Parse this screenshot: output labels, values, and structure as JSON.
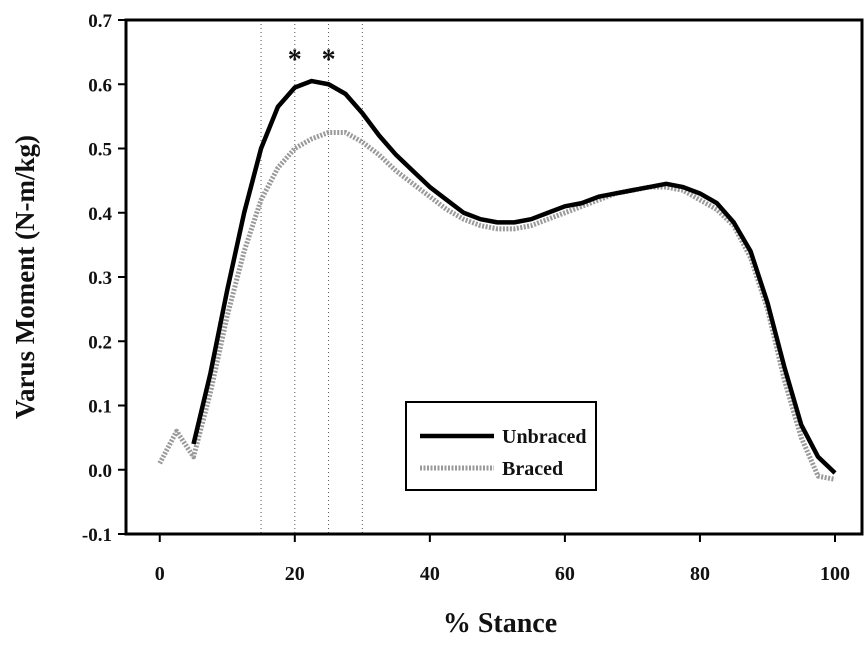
{
  "chart_data": {
    "type": "line",
    "xlabel": "% Stance",
    "ylabel": "Varus Moment (N-m/kg)",
    "x": [
      0,
      2.5,
      5,
      7.5,
      10,
      12.5,
      15,
      17.5,
      20,
      22.5,
      25,
      27.5,
      30,
      32.5,
      35,
      37.5,
      40,
      42.5,
      45,
      47.5,
      50,
      52.5,
      55,
      57.5,
      60,
      62.5,
      65,
      67.5,
      70,
      72.5,
      75,
      77.5,
      80,
      82.5,
      85,
      87.5,
      90,
      92.5,
      95,
      97.5,
      100
    ],
    "series": [
      {
        "name": "Unbraced",
        "color": "#000000",
        "style": "solid",
        "values": [
          null,
          null,
          0.04,
          0.15,
          0.28,
          0.4,
          0.5,
          0.565,
          0.595,
          0.605,
          0.6,
          0.585,
          0.555,
          0.52,
          0.49,
          0.465,
          0.44,
          0.42,
          0.4,
          0.39,
          0.385,
          0.385,
          0.39,
          0.4,
          0.41,
          0.415,
          0.425,
          0.43,
          0.435,
          0.44,
          0.445,
          0.44,
          0.43,
          0.415,
          0.385,
          0.34,
          0.26,
          0.16,
          0.07,
          0.02,
          -0.005
        ]
      },
      {
        "name": "Braced",
        "color": "#9a9a9a",
        "style": "dotted",
        "values": [
          0.01,
          0.06,
          0.02,
          0.12,
          0.24,
          0.34,
          0.42,
          0.47,
          0.5,
          0.515,
          0.525,
          0.525,
          0.51,
          0.49,
          0.465,
          0.445,
          0.425,
          0.405,
          0.39,
          0.38,
          0.375,
          0.375,
          0.38,
          0.39,
          0.4,
          0.41,
          0.42,
          0.43,
          0.435,
          0.44,
          0.44,
          0.435,
          0.42,
          0.405,
          0.38,
          0.33,
          0.25,
          0.14,
          0.05,
          -0.01,
          -0.015
        ]
      }
    ],
    "xlim": [
      -5,
      104
    ],
    "ylim": [
      -0.1,
      0.7
    ],
    "xticks": [
      0,
      20,
      40,
      60,
      80,
      100
    ],
    "yticks": [
      -0.1,
      {
        "value": 0,
        "label": "0.0"
      },
      0.1,
      0.2,
      0.3,
      0.4,
      0.5,
      0.6,
      0.7
    ],
    "vlines": [
      15,
      20,
      25,
      30
    ],
    "annotations": [
      {
        "text": "*",
        "x": 20,
        "y": 0.64
      },
      {
        "text": "*",
        "x": 25,
        "y": 0.64
      }
    ],
    "legend": "lower center"
  }
}
